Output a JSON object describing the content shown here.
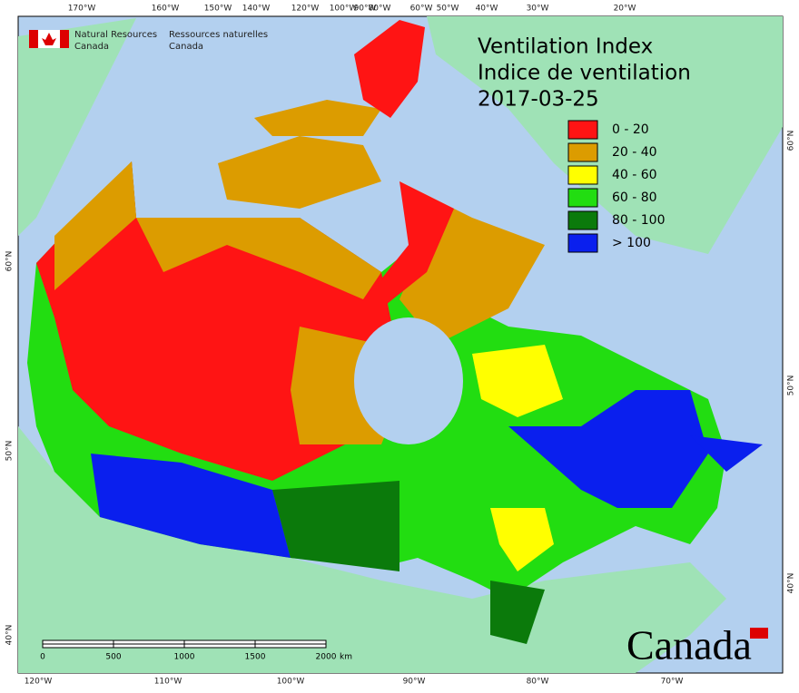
{
  "header": {
    "org_en": [
      "Natural Resources",
      "Canada"
    ],
    "org_fr": [
      "Ressources naturelles",
      "Canada"
    ]
  },
  "title": [
    "Ventilation Index",
    "Indice de ventilation",
    "2017-03-25"
  ],
  "legend": [
    {
      "label": "0 - 20",
      "color": "#ff1414"
    },
    {
      "label": "20 - 40",
      "color": "#dc9c00"
    },
    {
      "label": "40 - 60",
      "color": "#ffff00"
    },
    {
      "label": "60 - 80",
      "color": "#22dd11"
    },
    {
      "label": "80 - 100",
      "color": "#0b7a0b"
    },
    {
      "label": "> 100",
      "color": "#0a1fee"
    }
  ],
  "top_labels": [
    "170°W",
    "160°W",
    "150°W",
    "140°W",
    "120°W",
    "100°W",
    "90°W",
    "80°W",
    "60°W",
    "50°W",
    "40°W",
    "30°W",
    "20°W"
  ],
  "bottom_labels": [
    "120°W",
    "110°W",
    "100°W",
    "90°W",
    "80°W",
    "70°W"
  ],
  "left_labels": [
    "60°N",
    "50°N",
    "40°N"
  ],
  "right_labels": [
    "60°N",
    "50°N",
    "40°N"
  ],
  "scale": {
    "ticks": [
      0,
      500,
      1000,
      1500,
      2000
    ],
    "unit": "km"
  },
  "wordmark": "Canada"
}
